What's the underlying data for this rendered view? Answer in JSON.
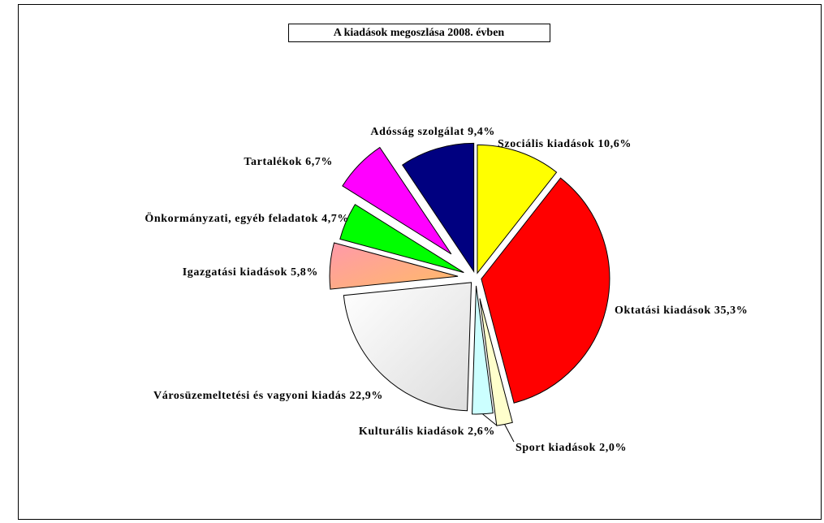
{
  "chart_data": {
    "type": "pie",
    "title": "A kiadások megoszlása  2008. évben",
    "categories": [
      "Szociális kiadások",
      "Oktatási kiadások",
      "Sport kiadások",
      "Kulturális kiadások",
      "Városüzemeltetési és vagyoni kiadás",
      "Igazgatási kiadások",
      "Önkormányzati, egyéb feladatok",
      "Tartalékok",
      "Adósság szolgálat"
    ],
    "values": [
      10.6,
      35.3,
      2.0,
      2.6,
      22.9,
      5.8,
      4.7,
      6.7,
      9.4
    ],
    "value_labels": [
      "10,6%",
      "35,3%",
      "2,0%",
      "2,6%",
      "22,9%",
      "5,8%",
      "4,7%",
      "6,7%",
      "9,4%"
    ],
    "colors": [
      "#ffff00",
      "#ff0000",
      "#ffffcc",
      "#ccffff",
      "#eeeeee",
      "#ffaa88",
      "#00ff00",
      "#ff00ff",
      "#000080"
    ]
  }
}
